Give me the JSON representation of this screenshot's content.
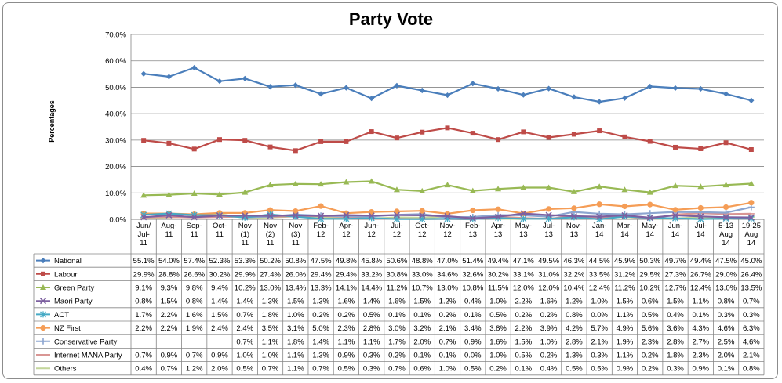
{
  "chart_data": {
    "type": "line",
    "title": "Party Vote",
    "ylabel": "Percentages",
    "xlabel": "",
    "ylim": [
      0,
      70
    ],
    "yticks": [
      "0.0%",
      "10.0%",
      "20.0%",
      "30.0%",
      "40.0%",
      "50.0%",
      "60.0%",
      "70.0%"
    ],
    "grid": true,
    "legend": "table",
    "categories": [
      "Jun/ Jul- 11",
      "Aug- 11",
      "Sep- 11",
      "Oct- 11",
      "Nov (1) 11",
      "Nov (2) 11",
      "Nov (3) 11",
      "Feb- 12",
      "Apr- 12",
      "Jun- 12",
      "Jul- 12",
      "Oct- 12",
      "Nov- 12",
      "Feb- 13",
      "Apr- 13",
      "May- 13",
      "Jul- 13",
      "Nov- 13",
      "Jan- 14",
      "Mar- 14",
      "May- 14",
      "Jun- 14",
      "Jul- 14",
      "5-13 Aug 14",
      "19-25 Aug 14"
    ],
    "series": [
      {
        "name": "National",
        "color": "#4a7ebb",
        "marker": "diamond",
        "values": [
          55.1,
          54.0,
          57.4,
          52.3,
          53.3,
          50.2,
          50.8,
          47.5,
          49.8,
          45.8,
          50.6,
          48.8,
          47.0,
          51.4,
          49.4,
          47.1,
          49.5,
          46.3,
          44.5,
          45.9,
          50.3,
          49.7,
          49.4,
          47.5,
          45.0
        ],
        "labels": [
          "55.1%",
          "54.0%",
          "57.4%",
          "52.3%",
          "53.3%",
          "50.2%",
          "50.8%",
          "47.5%",
          "49.8%",
          "45.8%",
          "50.6%",
          "48.8%",
          "47.0%",
          "51.4%",
          "49.4%",
          "47.1%",
          "49.5%",
          "46.3%",
          "44.5%",
          "45.9%",
          "50.3%",
          "49.7%",
          "49.4%",
          "47.5%",
          "45.0%"
        ]
      },
      {
        "name": "Labour",
        "color": "#be4b48",
        "marker": "square",
        "values": [
          29.9,
          28.8,
          26.6,
          30.2,
          29.9,
          27.4,
          26.0,
          29.4,
          29.4,
          33.2,
          30.8,
          33.0,
          34.6,
          32.6,
          30.2,
          33.1,
          31.0,
          32.2,
          33.5,
          31.2,
          29.5,
          27.3,
          26.7,
          29.0,
          26.4
        ],
        "labels": [
          "29.9%",
          "28.8%",
          "26.6%",
          "30.2%",
          "29.9%",
          "27.4%",
          "26.0%",
          "29.4%",
          "29.4%",
          "33.2%",
          "30.8%",
          "33.0%",
          "34.6%",
          "32.6%",
          "30.2%",
          "33.1%",
          "31.0%",
          "32.2%",
          "33.5%",
          "31.2%",
          "29.5%",
          "27.3%",
          "26.7%",
          "29.0%",
          "26.4%"
        ]
      },
      {
        "name": "Green Party",
        "color": "#98b954",
        "marker": "triangle",
        "values": [
          9.1,
          9.3,
          9.8,
          9.4,
          10.2,
          13.0,
          13.4,
          13.3,
          14.1,
          14.4,
          11.2,
          10.7,
          13.0,
          10.8,
          11.5,
          12.0,
          12.0,
          10.4,
          12.4,
          11.2,
          10.2,
          12.7,
          12.4,
          13.0,
          13.5
        ],
        "labels": [
          "9.1%",
          "9.3%",
          "9.8%",
          "9.4%",
          "10.2%",
          "13.0%",
          "13.4%",
          "13.3%",
          "14.1%",
          "14.4%",
          "11.2%",
          "10.7%",
          "13.0%",
          "10.8%",
          "11.5%",
          "12.0%",
          "12.0%",
          "10.4%",
          "12.4%",
          "11.2%",
          "10.2%",
          "12.7%",
          "12.4%",
          "13.0%",
          "13.5%"
        ]
      },
      {
        "name": "Maori Party",
        "color": "#7d60a0",
        "marker": "x",
        "values": [
          0.8,
          1.5,
          0.8,
          1.4,
          1.4,
          1.3,
          1.5,
          1.3,
          1.6,
          1.4,
          1.6,
          1.5,
          1.2,
          0.4,
          1.0,
          2.2,
          1.6,
          1.2,
          1.0,
          1.5,
          0.6,
          1.5,
          1.1,
          0.8,
          0.7
        ],
        "labels": [
          "0.8%",
          "1.5%",
          "0.8%",
          "1.4%",
          "1.4%",
          "1.3%",
          "1.5%",
          "1.3%",
          "1.6%",
          "1.4%",
          "1.6%",
          "1.5%",
          "1.2%",
          "0.4%",
          "1.0%",
          "2.2%",
          "1.6%",
          "1.2%",
          "1.0%",
          "1.5%",
          "0.6%",
          "1.5%",
          "1.1%",
          "0.8%",
          "0.7%"
        ]
      },
      {
        "name": "ACT",
        "color": "#46aac5",
        "marker": "star",
        "values": [
          1.7,
          2.2,
          1.6,
          1.5,
          0.7,
          1.8,
          1.0,
          0.2,
          0.2,
          0.5,
          0.1,
          0.1,
          0.2,
          0.1,
          0.5,
          0.2,
          0.2,
          0.8,
          0.0,
          1.1,
          0.5,
          0.4,
          0.1,
          0.3,
          0.3
        ],
        "labels": [
          "1.7%",
          "2.2%",
          "1.6%",
          "1.5%",
          "0.7%",
          "1.8%",
          "1.0%",
          "0.2%",
          "0.2%",
          "0.5%",
          "0.1%",
          "0.1%",
          "0.2%",
          "0.1%",
          "0.5%",
          "0.2%",
          "0.2%",
          "0.8%",
          "0.0%",
          "1.1%",
          "0.5%",
          "0.4%",
          "0.1%",
          "0.3%",
          "0.3%"
        ]
      },
      {
        "name": "NZ First",
        "color": "#f59d56",
        "marker": "circle",
        "values": [
          2.2,
          2.2,
          1.9,
          2.4,
          2.4,
          3.5,
          3.1,
          5.0,
          2.3,
          2.8,
          3.0,
          3.2,
          2.1,
          3.4,
          3.8,
          2.2,
          3.9,
          4.2,
          5.7,
          4.9,
          5.6,
          3.6,
          4.3,
          4.6,
          6.3
        ],
        "labels": [
          "2.2%",
          "2.2%",
          "1.9%",
          "2.4%",
          "2.4%",
          "3.5%",
          "3.1%",
          "5.0%",
          "2.3%",
          "2.8%",
          "3.0%",
          "3.2%",
          "2.1%",
          "3.4%",
          "3.8%",
          "2.2%",
          "3.9%",
          "4.2%",
          "5.7%",
          "4.9%",
          "5.6%",
          "3.6%",
          "4.3%",
          "4.6%",
          "6.3%"
        ]
      },
      {
        "name": "Conservative Party",
        "color": "#8ca5d0",
        "marker": "plus",
        "values": [
          null,
          null,
          null,
          null,
          0.7,
          1.1,
          1.8,
          1.4,
          1.1,
          1.1,
          1.7,
          2.0,
          0.7,
          0.9,
          1.6,
          1.5,
          1.0,
          2.8,
          2.1,
          1.9,
          2.3,
          2.8,
          2.7,
          2.5,
          4.6
        ],
        "labels": [
          "",
          "",
          "",
          "",
          "0.7%",
          "1.1%",
          "1.8%",
          "1.4%",
          "1.1%",
          "1.1%",
          "1.7%",
          "2.0%",
          "0.7%",
          "0.9%",
          "1.6%",
          "1.5%",
          "1.0%",
          "2.8%",
          "2.1%",
          "1.9%",
          "2.3%",
          "2.8%",
          "2.7%",
          "2.5%",
          "4.6%"
        ]
      },
      {
        "name": "Internet MANA  Party",
        "color": "#d99694",
        "marker": "dash",
        "values": [
          0.7,
          0.9,
          0.7,
          0.9,
          1.0,
          1.0,
          1.1,
          1.3,
          0.9,
          0.3,
          0.2,
          0.1,
          0.1,
          0.0,
          1.0,
          0.5,
          0.2,
          1.3,
          0.3,
          1.1,
          0.2,
          1.8,
          2.3,
          2.0,
          2.1
        ],
        "labels": [
          "0.7%",
          "0.9%",
          "0.7%",
          "0.9%",
          "1.0%",
          "1.0%",
          "1.1%",
          "1.3%",
          "0.9%",
          "0.3%",
          "0.2%",
          "0.1%",
          "0.1%",
          "0.0%",
          "1.0%",
          "0.5%",
          "0.2%",
          "1.3%",
          "0.3%",
          "1.1%",
          "0.2%",
          "1.8%",
          "2.3%",
          "2.0%",
          "2.1%"
        ]
      },
      {
        "name": "Others",
        "color": "#c3d69b",
        "marker": "dash",
        "values": [
          0.4,
          0.7,
          1.2,
          2.0,
          0.5,
          0.7,
          1.1,
          0.7,
          0.5,
          0.3,
          0.7,
          0.6,
          1.0,
          0.5,
          0.2,
          0.1,
          0.4,
          0.5,
          0.5,
          0.9,
          0.2,
          0.3,
          0.9,
          0.1,
          0.8
        ],
        "labels": [
          "0.4%",
          "0.7%",
          "1.2%",
          "2.0%",
          "0.5%",
          "0.7%",
          "1.1%",
          "0.7%",
          "0.5%",
          "0.3%",
          "0.7%",
          "0.6%",
          "1.0%",
          "0.5%",
          "0.2%",
          "0.1%",
          "0.4%",
          "0.5%",
          "0.5%",
          "0.9%",
          "0.2%",
          "0.3%",
          "0.9%",
          "0.1%",
          "0.8%"
        ]
      }
    ]
  }
}
